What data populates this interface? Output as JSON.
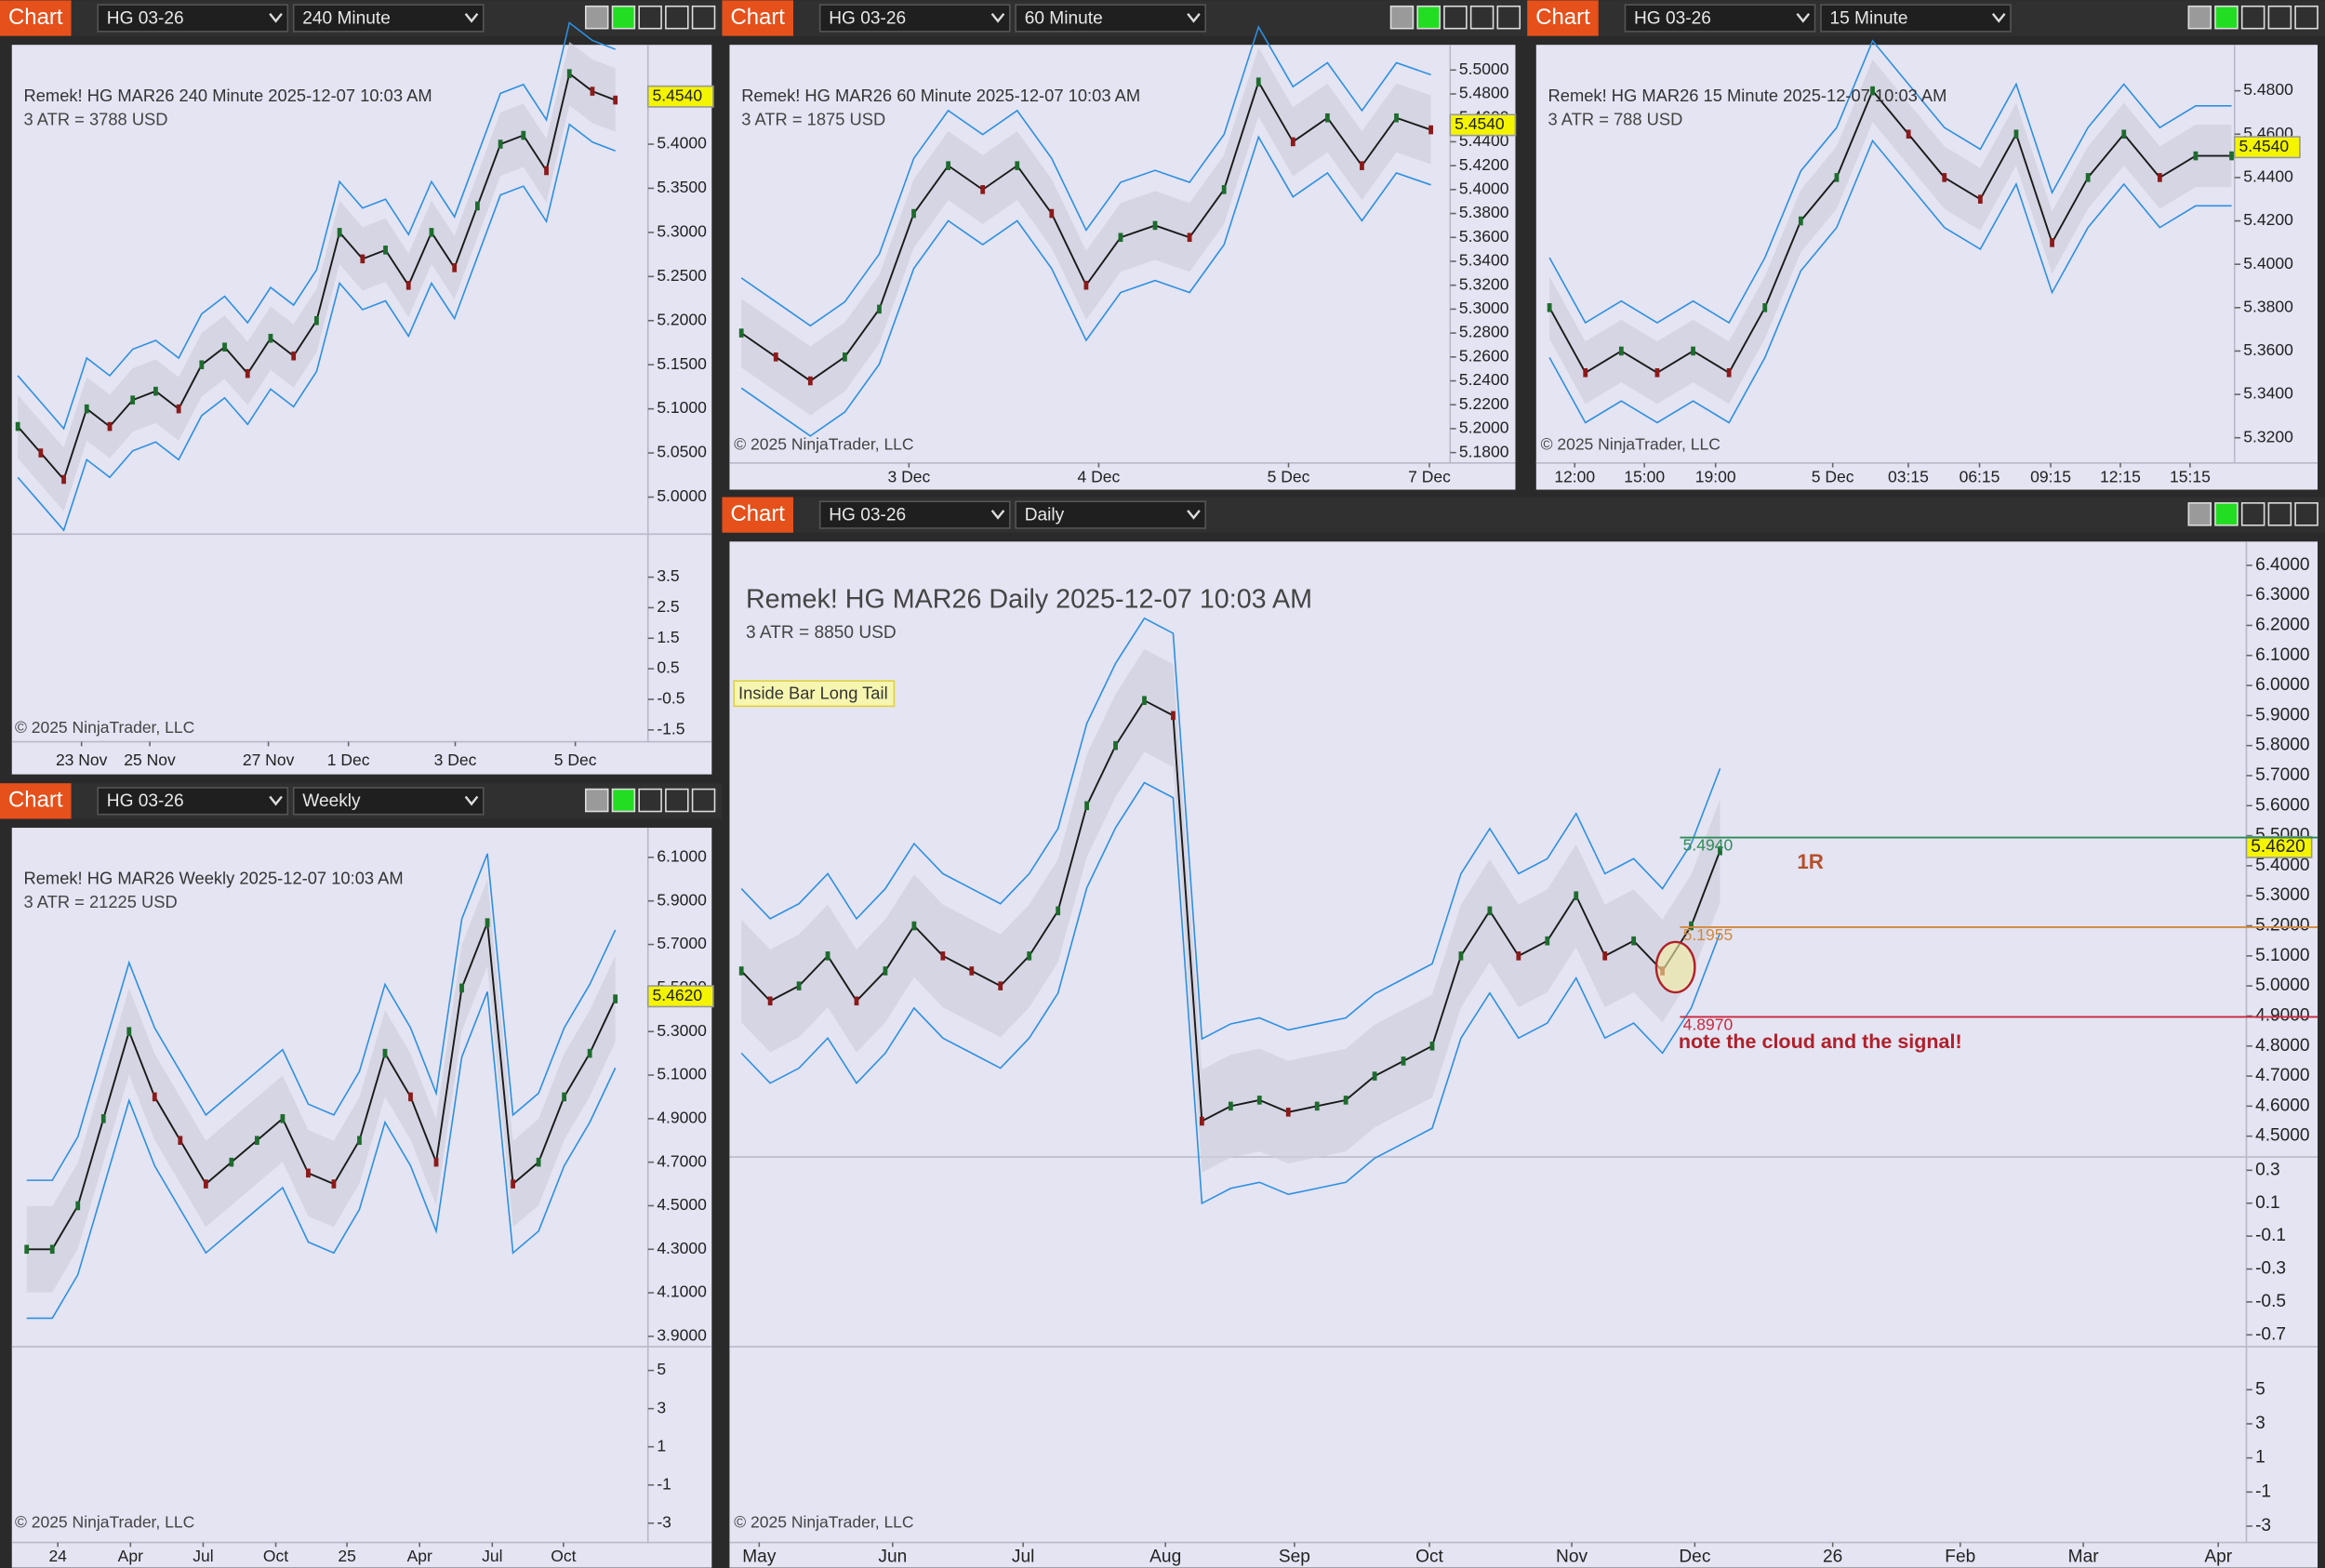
{
  "windows": [
    {
      "tab": "Chart",
      "instrument": "HG 03-26",
      "interval": "240 Minute",
      "title": "Remek!  HG MAR26  240 Minute  2025-12-07 10:03 AM",
      "atr": "3 ATR = 3788 USD",
      "price_label": "5.4540",
      "copyright": "© 2025 NinjaTrader, LLC",
      "yticks": [
        "5.4000",
        "5.3500",
        "5.3000",
        "5.2500",
        "5.2000",
        "5.1500",
        "5.1000",
        "5.0500",
        "5.0000"
      ],
      "indicator_ticks": [
        "3.5",
        "2.5",
        "1.5",
        "0.5",
        "-0.5",
        "-1.5"
      ],
      "xticks": [
        "23 Nov",
        "25 Nov",
        "27 Nov",
        "1 Dec",
        "3 Dec",
        "5 Dec"
      ],
      "closes": [
        5.08,
        5.05,
        5.02,
        5.1,
        5.08,
        5.11,
        5.12,
        5.1,
        5.15,
        5.17,
        5.14,
        5.18,
        5.16,
        5.2,
        5.3,
        5.27,
        5.28,
        5.24,
        5.3,
        5.26,
        5.33,
        5.4,
        5.41,
        5.37,
        5.48,
        5.46,
        5.45
      ]
    },
    {
      "tab": "Chart",
      "instrument": "HG 03-26",
      "interval": "60 Minute",
      "title": "Remek!  HG MAR26  60 Minute  2025-12-07 10:03 AM",
      "atr": "3 ATR = 1875 USD",
      "price_label": "5.4540",
      "copyright": "© 2025 NinjaTrader, LLC",
      "yticks": [
        "5.5000",
        "5.4800",
        "5.4600",
        "5.4400",
        "5.4200",
        "5.4000",
        "5.3800",
        "5.3600",
        "5.3400",
        "5.3200",
        "5.3000",
        "5.2800",
        "5.2600",
        "5.2400",
        "5.2200",
        "5.2000",
        "5.1800"
      ],
      "indicator_ticks": [],
      "xticks": [
        "3 Dec",
        "4 Dec",
        "5 Dec",
        "7 Dec"
      ],
      "closes": [
        5.28,
        5.26,
        5.24,
        5.26,
        5.3,
        5.38,
        5.42,
        5.4,
        5.42,
        5.38,
        5.32,
        5.36,
        5.37,
        5.36,
        5.4,
        5.49,
        5.44,
        5.46,
        5.42,
        5.46,
        5.45
      ]
    },
    {
      "tab": "Chart",
      "instrument": "HG 03-26",
      "interval": "15 Minute",
      "title": "Remek!  HG MAR26  15 Minute  2025-12-07 10:03 AM",
      "atr": "3 ATR = 788 USD",
      "price_label": "5.4540",
      "copyright": "© 2025 NinjaTrader, LLC",
      "yticks": [
        "5.4800",
        "5.4600",
        "5.4400",
        "5.4200",
        "5.4000",
        "5.3800",
        "5.3600",
        "5.3400",
        "5.3200"
      ],
      "indicator_ticks": [],
      "xticks": [
        "12:00",
        "15:00",
        "19:00",
        "5 Dec",
        "03:15",
        "06:15",
        "09:15",
        "12:15",
        "15:15"
      ],
      "closes": [
        5.38,
        5.35,
        5.36,
        5.35,
        5.36,
        5.35,
        5.38,
        5.42,
        5.44,
        5.48,
        5.46,
        5.44,
        5.43,
        5.46,
        5.41,
        5.44,
        5.46,
        5.44,
        5.45,
        5.45
      ]
    },
    {
      "tab": "Chart",
      "instrument": "HG 03-26",
      "interval": "Weekly",
      "title": "Remek!  HG MAR26  Weekly  2025-12-07 10:03 AM",
      "atr": "3 ATR = 21225 USD",
      "price_label": "5.4620",
      "copyright": "© 2025 NinjaTrader, LLC",
      "yticks": [
        "6.1000",
        "5.9000",
        "5.7000",
        "5.5000",
        "5.3000",
        "5.1000",
        "4.9000",
        "4.7000",
        "4.5000",
        "4.3000",
        "4.1000",
        "3.9000"
      ],
      "indicator_ticks": [
        "5",
        "3",
        "1",
        "-1",
        "-3"
      ],
      "xticks": [
        "24",
        "Apr",
        "Jul",
        "Oct",
        "25",
        "Apr",
        "Jul",
        "Oct"
      ],
      "closes": [
        4.3,
        4.3,
        4.5,
        4.9,
        5.3,
        5.0,
        4.8,
        4.6,
        4.7,
        4.8,
        4.9,
        4.65,
        4.6,
        4.8,
        5.2,
        5.0,
        4.7,
        5.5,
        5.8,
        4.6,
        4.7,
        5.0,
        5.2,
        5.45
      ]
    },
    {
      "tab": "Chart",
      "instrument": "HG 03-26",
      "interval": "Daily",
      "title": "Remek!  HG MAR26  Daily  2025-12-07 10:03 AM",
      "atr": "3 ATR = 8850 USD",
      "price_label": "5.4620",
      "copyright": "© 2025 NinjaTrader, LLC",
      "yticks": [
        "6.4000",
        "6.3000",
        "6.2000",
        "6.1000",
        "6.0000",
        "5.9000",
        "5.8000",
        "5.7000",
        "5.6000",
        "5.5000",
        "5.4000",
        "5.3000",
        "5.2000",
        "5.1000",
        "5.0000",
        "4.9000",
        "4.8000",
        "4.7000",
        "4.6000",
        "4.5000"
      ],
      "indicator_ticks": [
        "0.3",
        "0.1",
        "-0.1",
        "-0.3",
        "-0.5",
        "-0.7"
      ],
      "histogram_ticks": [
        "5",
        "3",
        "1",
        "-1",
        "-3"
      ],
      "xticks": [
        "May",
        "Jun",
        "Jul",
        "Aug",
        "Sep",
        "Oct",
        "Nov",
        "Dec",
        "26",
        "Feb",
        "Mar",
        "Apr"
      ],
      "closes": [
        5.05,
        4.95,
        5.0,
        5.1,
        4.95,
        5.05,
        5.2,
        5.1,
        5.05,
        5.0,
        5.1,
        5.25,
        5.6,
        5.8,
        5.95,
        5.9,
        4.55,
        4.6,
        4.62,
        4.58,
        4.6,
        4.62,
        4.7,
        4.75,
        4.8,
        5.1,
        5.25,
        5.1,
        5.15,
        5.3,
        5.1,
        5.15,
        5.05,
        5.2,
        5.45
      ],
      "signal": "Inside Bar Long Tail",
      "levels": [
        {
          "label": "5.4940",
          "color": "#2e8b57"
        },
        {
          "label": "5.1955",
          "color": "#d2883c"
        },
        {
          "label": "4.8970",
          "color": "#c8283c"
        }
      ],
      "target": "1R",
      "note": "note the cloud and the signal!"
    }
  ]
}
